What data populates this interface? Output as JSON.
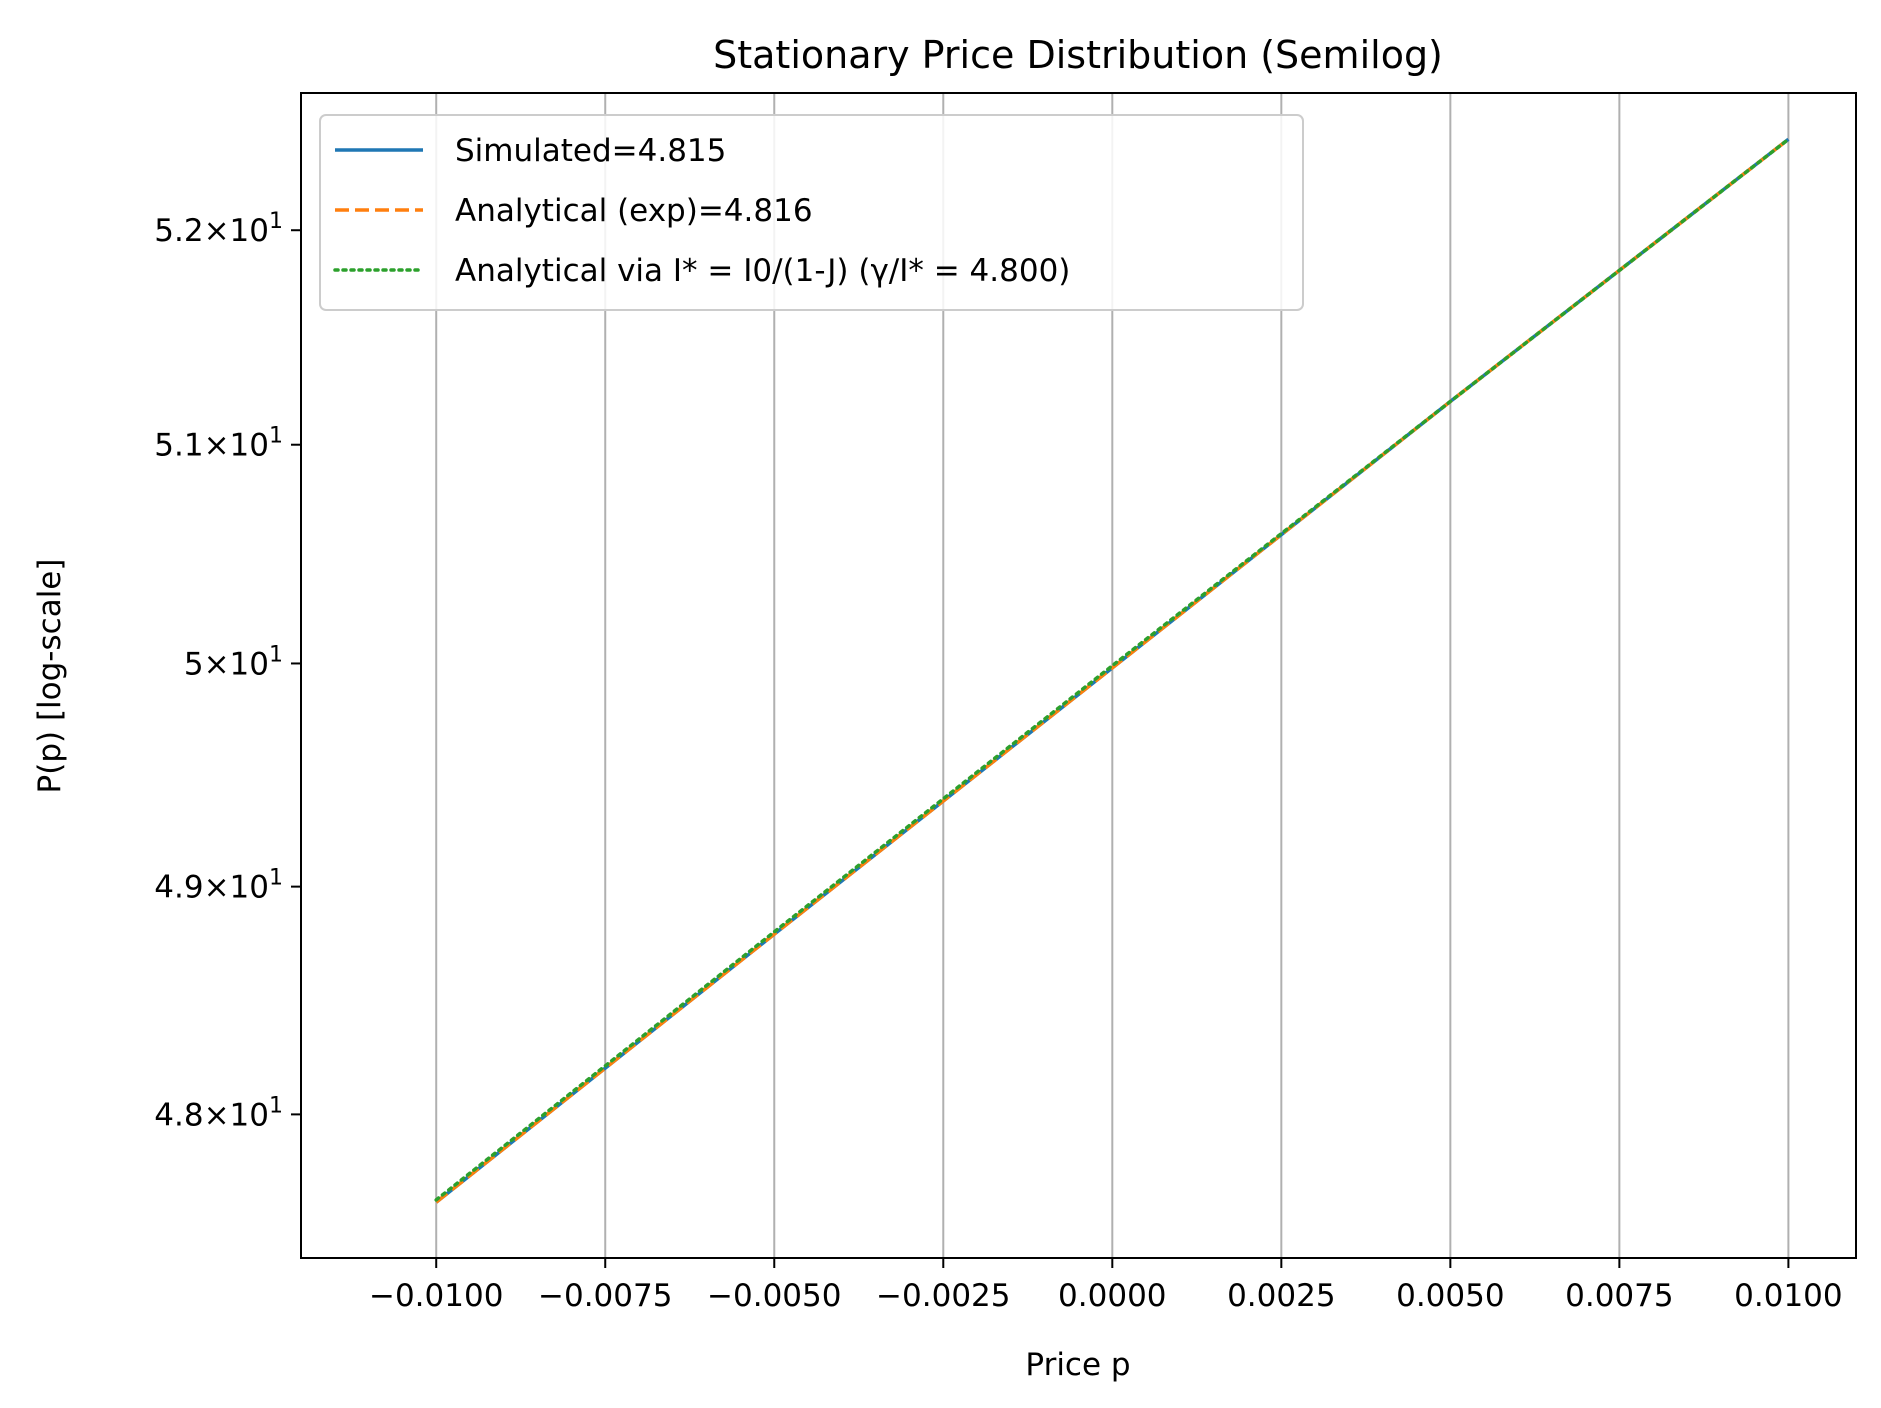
{
  "chart_data": {
    "type": "line",
    "title": "Stationary Price Distribution (Semilog)",
    "xlabel": "Price p",
    "ylabel": "P(p) [log-scale]",
    "xlim": [
      -0.012,
      0.011
    ],
    "ylim": [
      47.38,
      52.65
    ],
    "yscale": "log",
    "grid": "x-major",
    "legend_position": "upper-left",
    "x_ticks": [
      -0.01,
      -0.0075,
      -0.005,
      -0.0025,
      0.0,
      0.0025,
      0.005,
      0.0075,
      0.01
    ],
    "x_tick_labels": [
      "−0.0100",
      "−0.0075",
      "−0.0050",
      "−0.0025",
      "0.0000",
      "0.0025",
      "0.0050",
      "0.0075",
      "0.0100"
    ],
    "y_ticks": [
      {
        "value": 48,
        "mantissa": "4.8"
      },
      {
        "value": 49,
        "mantissa": "4.9"
      },
      {
        "value": 50,
        "mantissa": "5"
      },
      {
        "value": 51,
        "mantissa": "5.1"
      },
      {
        "value": 52,
        "mantissa": "5.2"
      }
    ],
    "y_tick_base": "10",
    "y_tick_exponent": "1",
    "series": [
      {
        "name": "Simulated=4.815",
        "color": "#1f77b4",
        "dash": "solid",
        "x": [
          -0.01,
          -0.005,
          0.0,
          0.005,
          0.01
        ],
        "y": [
          47.62,
          48.79,
          49.98,
          51.2,
          52.43
        ]
      },
      {
        "name": "Analytical (exp)=4.816",
        "color": "#ff7f0e",
        "dash": "dashed",
        "x": [
          -0.01,
          -0.005,
          0.0,
          0.005,
          0.01
        ],
        "y": [
          47.62,
          48.79,
          49.98,
          51.2,
          52.43
        ]
      },
      {
        "name": "Analytical via I* = I0/(1-J) (γ/I* = 4.800)",
        "color": "#2ca02c",
        "dash": "dotted",
        "x": [
          -0.01,
          -0.005,
          0.0,
          0.005,
          0.01
        ],
        "y": [
          47.63,
          48.8,
          49.99,
          51.2,
          52.43
        ]
      }
    ]
  }
}
